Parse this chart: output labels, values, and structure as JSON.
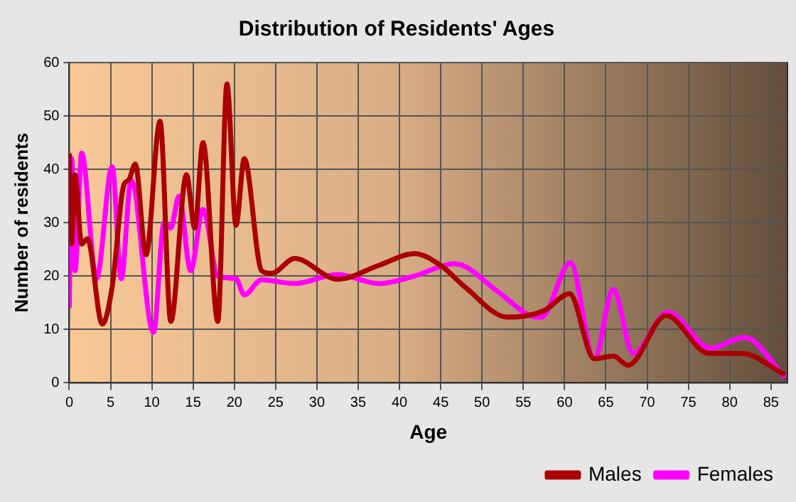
{
  "chart_data": {
    "type": "line",
    "title": "Distribution of Residents' Ages",
    "xlabel": "Age",
    "ylabel": "Number of residents",
    "xlim": [
      0,
      87
    ],
    "xticks": [
      0,
      5,
      10,
      15,
      20,
      25,
      30,
      35,
      40,
      45,
      50,
      55,
      60,
      65,
      70,
      75,
      80,
      85
    ],
    "ylim": [
      0,
      60
    ],
    "yticks": [
      0,
      10,
      20,
      30,
      40,
      50,
      60
    ],
    "grid": true,
    "legend": "bottom right",
    "marker": "none",
    "line_style": "solid",
    "series": [
      {
        "name": "Males",
        "color": "#aa0000",
        "x": [
          0,
          0.3,
          0.7,
          1.5,
          2.2,
          4,
          5.2,
          6.6,
          7.2,
          8,
          9.3,
          11,
          12.3,
          14.2,
          15.2,
          16.2,
          18,
          19.1,
          20.2,
          21.2,
          23.3,
          24.5,
          27.3,
          32.5,
          37.5,
          41.8,
          45,
          47.9,
          53.1,
          57.5,
          60.6,
          63.6,
          65.9,
          67.7,
          72.3,
          77.5,
          81.5,
          86.7
        ],
        "values": [
          43,
          26,
          39,
          26,
          27,
          11,
          18,
          37,
          38,
          41,
          24,
          49,
          11.5,
          39,
          29,
          45,
          11.5,
          56,
          29.5,
          42,
          21,
          20.5,
          23.3,
          19.4,
          22,
          24.2,
          22,
          18,
          12.3,
          13.5,
          16.7,
          4.5,
          5,
          3.3,
          12.6,
          5.5,
          5.5,
          1.5
        ]
      },
      {
        "name": "Females",
        "color": "#ff00ff",
        "x": [
          0,
          0.3,
          0.7,
          1.5,
          3.3,
          5.2,
          6.3,
          7.5,
          10.2,
          11.5,
          12.3,
          13.3,
          14.7,
          16.2,
          18,
          20.2,
          21.2,
          23.3,
          27.3,
          32.5,
          37.5,
          41.8,
          46.7,
          52,
          56,
          57.2,
          60.7,
          63.6,
          65.9,
          68.3,
          72.5,
          77.7,
          81.8,
          86.7
        ],
        "values": [
          14,
          42,
          21,
          43,
          19.5,
          40.5,
          19.5,
          38,
          9.5,
          30,
          29,
          35,
          21,
          32.5,
          20,
          19.5,
          16.5,
          19.3,
          18.6,
          20.3,
          18.6,
          20,
          22.3,
          17,
          12.5,
          12.3,
          22.5,
          4.5,
          17.5,
          5.5,
          13.2,
          6.5,
          8.5,
          1
        ]
      }
    ]
  }
}
